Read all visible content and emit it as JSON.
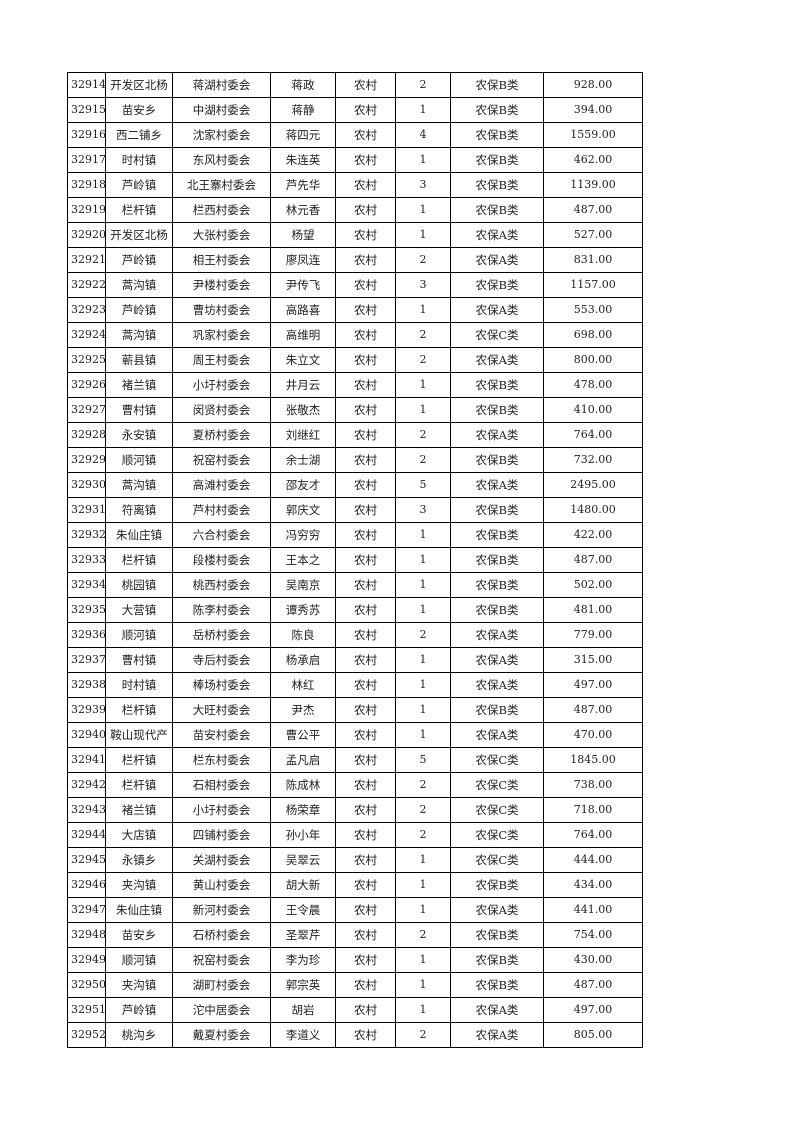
{
  "table": {
    "rows": [
      [
        "32914",
        "开发区北杨",
        "蒋湖村委会",
        "蒋政",
        "农村",
        "2",
        "农保B类",
        "928.00"
      ],
      [
        "32915",
        "苗安乡",
        "中湖村委会",
        "蒋静",
        "农村",
        "1",
        "农保B类",
        "394.00"
      ],
      [
        "32916",
        "西二铺乡",
        "沈家村委会",
        "蒋四元",
        "农村",
        "4",
        "农保B类",
        "1559.00"
      ],
      [
        "32917",
        "时村镇",
        "东风村委会",
        "朱连英",
        "农村",
        "1",
        "农保B类",
        "462.00"
      ],
      [
        "32918",
        "芦岭镇",
        "北王寨村委会",
        "芦先华",
        "农村",
        "3",
        "农保B类",
        "1139.00"
      ],
      [
        "32919",
        "栏杆镇",
        "栏西村委会",
        "林元香",
        "农村",
        "1",
        "农保B类",
        "487.00"
      ],
      [
        "32920",
        "开发区北杨",
        "大张村委会",
        "杨望",
        "农村",
        "1",
        "农保A类",
        "527.00"
      ],
      [
        "32921",
        "芦岭镇",
        "相王村委会",
        "廖凤连",
        "农村",
        "2",
        "农保A类",
        "831.00"
      ],
      [
        "32922",
        "蒿沟镇",
        "尹楼村委会",
        "尹传飞",
        "农村",
        "3",
        "农保B类",
        "1157.00"
      ],
      [
        "32923",
        "芦岭镇",
        "曹坊村委会",
        "高路喜",
        "农村",
        "1",
        "农保A类",
        "553.00"
      ],
      [
        "32924",
        "蒿沟镇",
        "巩家村委会",
        "高维明",
        "农村",
        "2",
        "农保C类",
        "698.00"
      ],
      [
        "32925",
        "蕲县镇",
        "周王村委会",
        "朱立文",
        "农村",
        "2",
        "农保A类",
        "800.00"
      ],
      [
        "32926",
        "褚兰镇",
        "小圩村委会",
        "井月云",
        "农村",
        "1",
        "农保B类",
        "478.00"
      ],
      [
        "32927",
        "曹村镇",
        "闵贤村委会",
        "张敬杰",
        "农村",
        "1",
        "农保B类",
        "410.00"
      ],
      [
        "32928",
        "永安镇",
        "夏桥村委会",
        "刘继红",
        "农村",
        "2",
        "农保A类",
        "764.00"
      ],
      [
        "32929",
        "顺河镇",
        "祝窑村委会",
        "余士湖",
        "农村",
        "2",
        "农保B类",
        "732.00"
      ],
      [
        "32930",
        "蒿沟镇",
        "高滩村委会",
        "邵友才",
        "农村",
        "5",
        "农保A类",
        "2495.00"
      ],
      [
        "32931",
        "符离镇",
        "芦村村委会",
        "郭庆文",
        "农村",
        "3",
        "农保B类",
        "1480.00"
      ],
      [
        "32932",
        "朱仙庄镇",
        "六合村委会",
        "冯穷穷",
        "农村",
        "1",
        "农保B类",
        "422.00"
      ],
      [
        "32933",
        "栏杆镇",
        "段楼村委会",
        "王本之",
        "农村",
        "1",
        "农保B类",
        "487.00"
      ],
      [
        "32934",
        "桃园镇",
        "桃西村委会",
        "吴南京",
        "农村",
        "1",
        "农保B类",
        "502.00"
      ],
      [
        "32935",
        "大营镇",
        "陈李村委会",
        "谭秀苏",
        "农村",
        "1",
        "农保B类",
        "481.00"
      ],
      [
        "32936",
        "顺河镇",
        "岳桥村委会",
        "陈良",
        "农村",
        "2",
        "农保A类",
        "779.00"
      ],
      [
        "32937",
        "曹村镇",
        "寺后村委会",
        "杨承启",
        "农村",
        "1",
        "农保A类",
        "315.00"
      ],
      [
        "32938",
        "时村镇",
        "棒场村委会",
        "林红",
        "农村",
        "1",
        "农保A类",
        "497.00"
      ],
      [
        "32939",
        "栏杆镇",
        "大旺村委会",
        "尹杰",
        "农村",
        "1",
        "农保B类",
        "487.00"
      ],
      [
        "32940",
        "鞍山现代产",
        "苗安村委会",
        "曹公平",
        "农村",
        "1",
        "农保A类",
        "470.00"
      ],
      [
        "32941",
        "栏杆镇",
        "栏东村委会",
        "孟凡启",
        "农村",
        "5",
        "农保C类",
        "1845.00"
      ],
      [
        "32942",
        "栏杆镇",
        "石相村委会",
        "陈成林",
        "农村",
        "2",
        "农保C类",
        "738.00"
      ],
      [
        "32943",
        "褚兰镇",
        "小圩村委会",
        "杨荣章",
        "农村",
        "2",
        "农保C类",
        "718.00"
      ],
      [
        "32944",
        "大店镇",
        "四铺村委会",
        "孙小年",
        "农村",
        "2",
        "农保C类",
        "764.00"
      ],
      [
        "32945",
        "永镇乡",
        "关湖村委会",
        "吴翠云",
        "农村",
        "1",
        "农保C类",
        "444.00"
      ],
      [
        "32946",
        "夹沟镇",
        "黄山村委会",
        "胡大新",
        "农村",
        "1",
        "农保B类",
        "434.00"
      ],
      [
        "32947",
        "朱仙庄镇",
        "新河村委会",
        "王令晨",
        "农村",
        "1",
        "农保A类",
        "441.00"
      ],
      [
        "32948",
        "苗安乡",
        "石桥村委会",
        "圣翠芹",
        "农村",
        "2",
        "农保B类",
        "754.00"
      ],
      [
        "32949",
        "顺河镇",
        "祝窑村委会",
        "李为珍",
        "农村",
        "1",
        "农保B类",
        "430.00"
      ],
      [
        "32950",
        "夹沟镇",
        "湖町村委会",
        "郭宗英",
        "农村",
        "1",
        "农保B类",
        "487.00"
      ],
      [
        "32951",
        "芦岭镇",
        "沱中居委会",
        "胡岩",
        "农村",
        "1",
        "农保A类",
        "497.00"
      ],
      [
        "32952",
        "桃沟乡",
        "戴夏村委会",
        "李道义",
        "农村",
        "2",
        "农保A类",
        "805.00"
      ]
    ]
  }
}
